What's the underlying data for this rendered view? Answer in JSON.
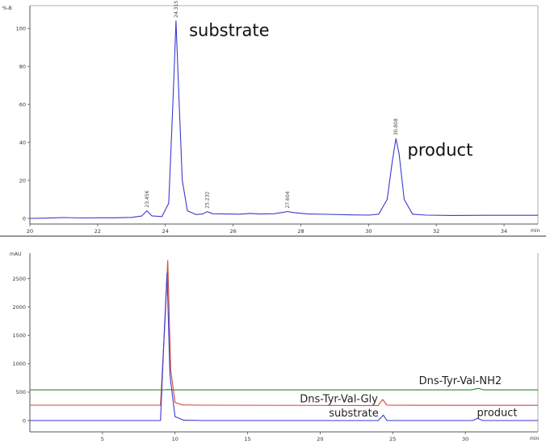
{
  "chart_data": [
    {
      "type": "line",
      "title": "",
      "xlabel": "",
      "ylabel": "",
      "y_unit": "%-B",
      "x_unit": "min",
      "xlim": [
        20,
        35
      ],
      "ylim": [
        -3,
        112
      ],
      "xticks": [
        20,
        22,
        24,
        26,
        28,
        30,
        32,
        34
      ],
      "yticks": [
        0,
        20,
        40,
        60,
        80,
        100
      ],
      "grid": false,
      "series": [
        {
          "color": "#3a3ad0",
          "x": [
            20.0,
            20.5,
            21.0,
            21.5,
            22.0,
            22.5,
            23.0,
            23.3,
            23.456,
            23.6,
            23.9,
            24.1,
            24.22,
            24.315,
            24.4,
            24.5,
            24.65,
            24.9,
            25.1,
            25.232,
            25.4,
            25.8,
            26.2,
            26.5,
            26.8,
            27.2,
            27.5,
            27.604,
            27.75,
            28.2,
            28.8,
            29.5,
            30.0,
            30.3,
            30.55,
            30.7,
            30.808,
            30.9,
            31.05,
            31.3,
            31.7,
            32.5,
            33.5,
            35.0
          ],
          "y": [
            0.0,
            0.1,
            0.4,
            0.2,
            0.3,
            0.3,
            0.5,
            1.2,
            4.0,
            1.3,
            0.9,
            8.0,
            60.0,
            104.0,
            64.0,
            20.0,
            4.0,
            2.0,
            2.3,
            3.5,
            2.4,
            2.3,
            2.2,
            2.6,
            2.3,
            2.4,
            3.2,
            3.6,
            3.1,
            2.3,
            2.1,
            1.8,
            1.7,
            2.2,
            10.0,
            30.0,
            42.0,
            34.0,
            10.0,
            2.2,
            1.7,
            1.5,
            1.6,
            1.6
          ]
        }
      ],
      "peak_labels": [
        {
          "x": 23.456,
          "y": 4.0,
          "text": "23.456"
        },
        {
          "x": 24.315,
          "y": 104.0,
          "text": "24.315"
        },
        {
          "x": 25.232,
          "y": 3.5,
          "text": "25.232"
        },
        {
          "x": 27.604,
          "y": 3.6,
          "text": "27.604"
        },
        {
          "x": 30.808,
          "y": 42.0,
          "text": "30.808"
        }
      ],
      "annotations": [
        {
          "text": "substrate",
          "x": 24.7,
          "y": 96
        },
        {
          "text": "product",
          "x": 31.15,
          "y": 33
        }
      ]
    },
    {
      "type": "line",
      "title": "",
      "xlabel": "",
      "ylabel": "",
      "y_unit": "mAU",
      "x_unit": "min",
      "xlim": [
        0,
        35
      ],
      "ylim": [
        -200,
        2950
      ],
      "xticks": [
        5,
        10,
        15,
        20,
        25,
        30
      ],
      "yticks": [
        0,
        500,
        1000,
        1500,
        2000,
        2500
      ],
      "grid": false,
      "series": [
        {
          "color": "#2b8a2b",
          "x": [
            0,
            9.2,
            9.5,
            9.9,
            10.5,
            30.4,
            30.9,
            31.3,
            35
          ],
          "y": [
            540,
            540,
            545,
            540,
            540,
            540,
            565,
            540,
            540
          ]
        },
        {
          "color": "#d04a3a",
          "x": [
            0,
            9.0,
            9.3,
            9.5,
            9.7,
            10.0,
            10.5,
            12.0,
            24.0,
            24.3,
            24.6,
            30.5,
            35
          ],
          "y": [
            270,
            270,
            1700,
            2820,
            900,
            320,
            275,
            270,
            265,
            370,
            270,
            268,
            268
          ]
        },
        {
          "color": "#3a3ad0",
          "x": [
            0,
            9.0,
            9.25,
            9.45,
            9.65,
            10.0,
            10.6,
            12.0,
            24.0,
            24.35,
            24.6,
            30.5,
            30.85,
            31.2,
            35
          ],
          "y": [
            0,
            0,
            1500,
            2600,
            800,
            70,
            5,
            0,
            0,
            95,
            0,
            0,
            40,
            0,
            0
          ]
        }
      ],
      "annotations": [
        {
          "text": "Dns-Tyr-Val-NH2",
          "x": 26.8,
          "y": 640
        },
        {
          "text": "Dns-Tyr-Val-Gly",
          "x": 18.6,
          "y": 320
        },
        {
          "text": "substrate",
          "x": 20.6,
          "y": 70
        },
        {
          "text": "product",
          "x": 30.8,
          "y": 80
        }
      ]
    }
  ]
}
